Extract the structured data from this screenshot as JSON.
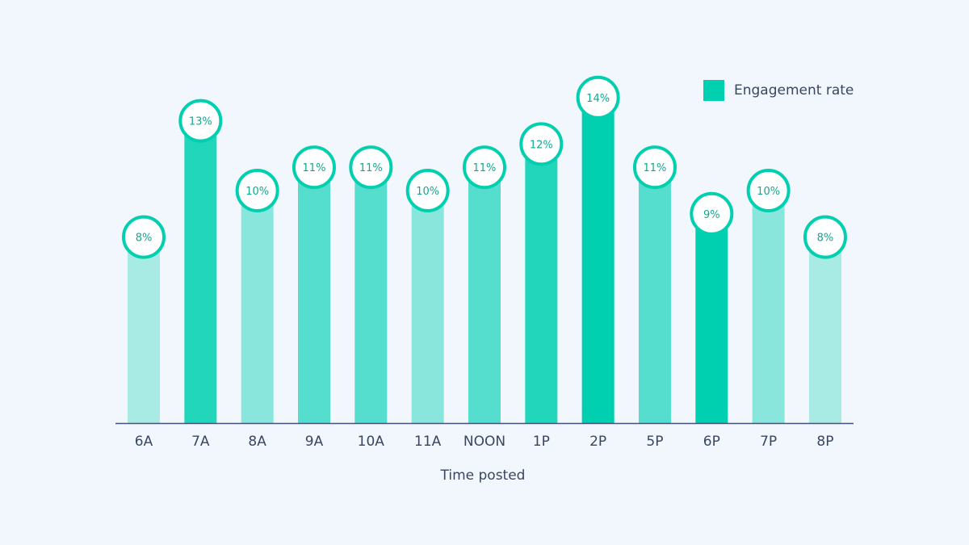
{
  "chart_data": {
    "type": "bar",
    "title": "",
    "xlabel": "Time posted",
    "ylabel": "",
    "ylim": [
      0,
      14
    ],
    "categories": [
      "6A",
      "7A",
      "8A",
      "9A",
      "10A",
      "11A",
      "NOON",
      "1P",
      "2P",
      "5P",
      "6P",
      "7P",
      "8P"
    ],
    "values": [
      8,
      13,
      10,
      11,
      11,
      10,
      11,
      12,
      14,
      11,
      9,
      10,
      8
    ],
    "data_labels": [
      "8%",
      "13%",
      "10%",
      "11%",
      "11%",
      "10%",
      "11%",
      "12%",
      "14%",
      "11%",
      "9%",
      "10%",
      "8%"
    ],
    "bar_colors": [
      "#a8ebe4",
      "#22d6bc",
      "#88e6dc",
      "#55decd",
      "#55decd",
      "#88e6dc",
      "#55decd",
      "#22d6bc",
      "#00cfb0",
      "#55decd",
      "#00cfb0",
      "#88e6dc",
      "#a8ebe4"
    ],
    "legend": {
      "label": "Engagement rate",
      "color": "#00cfb0",
      "placement": "top-right"
    },
    "grid": false
  }
}
